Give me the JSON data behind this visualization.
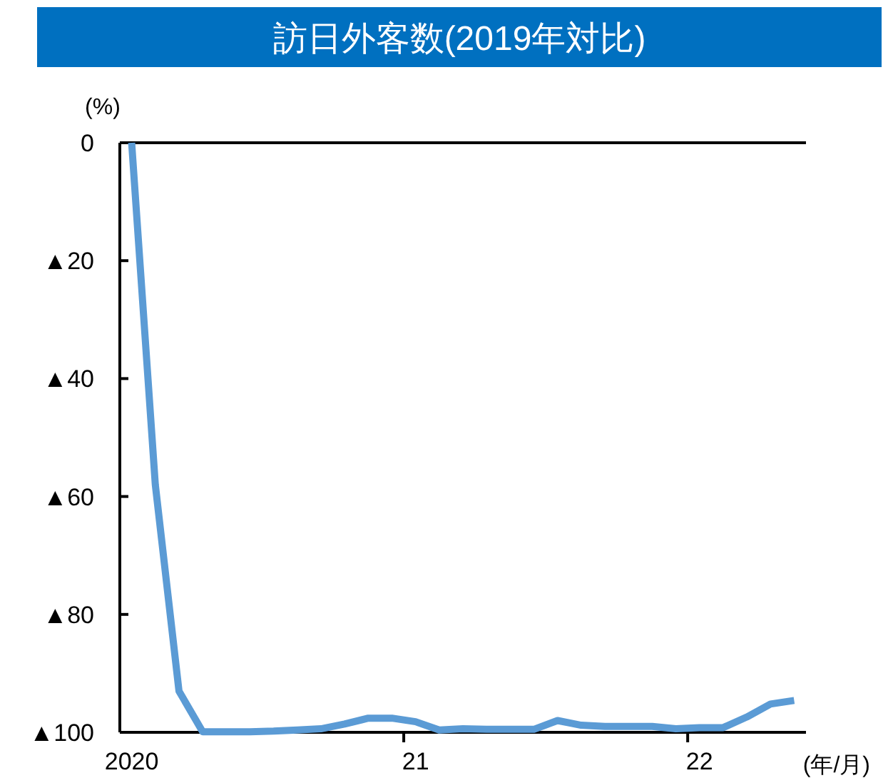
{
  "chart_data": {
    "type": "line",
    "title": "訪日外客数(2019年対比)",
    "ylabel": "(%)",
    "xlabel": "(年/月)",
    "categories": [
      "2020",
      null,
      null,
      null,
      null,
      null,
      null,
      null,
      null,
      null,
      null,
      null,
      "21",
      null,
      null,
      null,
      null,
      null,
      null,
      null,
      null,
      null,
      null,
      null,
      "22",
      null,
      null,
      null,
      null
    ],
    "series": [
      {
        "color": "#5b9bd5",
        "values": [
          0,
          -58,
          -93,
          -99.9,
          -99.9,
          -99.9,
          -99.8,
          -99.6,
          -99.4,
          -98.6,
          -97.6,
          -97.6,
          -98.2,
          -99.6,
          -99.4,
          -99.5,
          -99.5,
          -99.5,
          -98.0,
          -98.8,
          -99.0,
          -99.0,
          -99.0,
          -99.4,
          -99.2,
          -99.2,
          -97.4,
          -95.2,
          -94.6
        ]
      }
    ],
    "ylim": [
      -100,
      0
    ],
    "yticks": [
      0,
      {
        "value": -20,
        "label": "▲20"
      },
      {
        "value": -40,
        "label": "▲40"
      },
      {
        "value": -60,
        "label": "▲60"
      },
      {
        "value": -80,
        "label": "▲80"
      },
      {
        "value": -100,
        "label": "▲100"
      }
    ],
    "grid": false,
    "marker": "none",
    "line_style": "solid"
  }
}
